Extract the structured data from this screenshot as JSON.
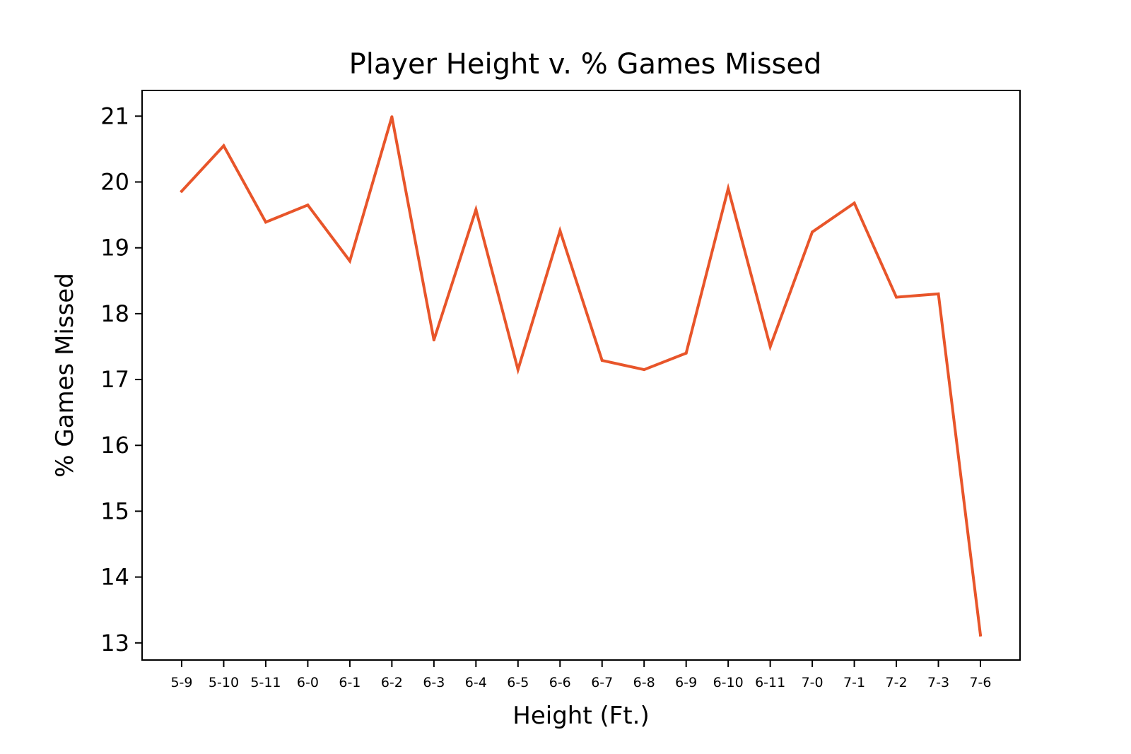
{
  "chart_data": {
    "type": "line",
    "title": "Player Height v. % Games Missed",
    "xlabel": "Height (Ft.)",
    "ylabel": "% Games Missed",
    "categories": [
      "5-9",
      "5-10",
      "5-11",
      "6-0",
      "6-1",
      "6-2",
      "6-3",
      "6-4",
      "6-5",
      "6-6",
      "6-7",
      "6-8",
      "6-9",
      "6-10",
      "6-11",
      "7-0",
      "7-1",
      "7-2",
      "7-3",
      "7-6"
    ],
    "series": [
      {
        "values": [
          19.86,
          20.55,
          19.39,
          19.65,
          18.8,
          20.99,
          17.6,
          19.58,
          17.15,
          19.26,
          17.29,
          17.15,
          17.4,
          19.9,
          17.5,
          19.24,
          19.68,
          18.25,
          18.3,
          13.12
        ]
      }
    ],
    "yticks": [
      13,
      14,
      15,
      16,
      17,
      18,
      19,
      20,
      21
    ],
    "ylim": [
      12.74,
      21.39
    ],
    "grid": false,
    "line_color": "#e8552a"
  }
}
